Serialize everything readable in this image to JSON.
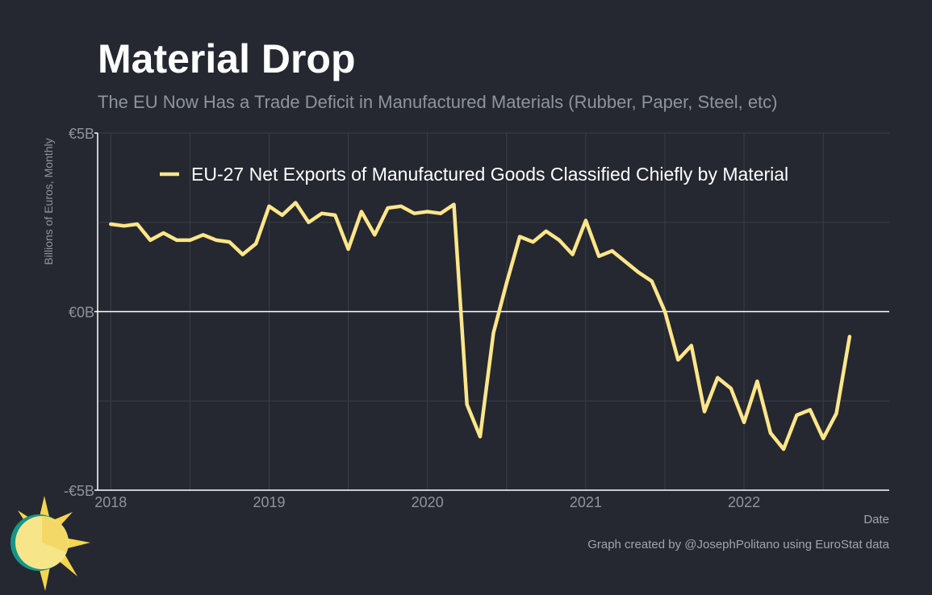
{
  "title": "Material Drop",
  "subtitle": "The EU Now Has a Trade Deficit in Manufactured Materials (Rubber, Paper, Steel, etc)",
  "credit": "Graph created by @JosephPolitano using EuroStat data",
  "colors": {
    "background": "#252830",
    "line": "#fde68a",
    "grid": "#3a3e47",
    "axis": "#ffffff",
    "text_muted": "#8f949c"
  },
  "logo_icon": "sun-icon",
  "chart_data": {
    "type": "line",
    "title": "Material Drop",
    "xlabel": "Date",
    "ylabel": "Billions of Euros, Monthly",
    "ylim": [
      -5,
      5
    ],
    "yticks": [
      {
        "value": 5,
        "label": "€5B"
      },
      {
        "value": 0,
        "label": "€0B"
      },
      {
        "value": -5,
        "label": "-€5B"
      }
    ],
    "xlim": [
      2017.917,
      2022.917
    ],
    "xticks": [
      {
        "value": 2018,
        "label": "2018"
      },
      {
        "value": 2019,
        "label": "2019"
      },
      {
        "value": 2020,
        "label": "2020"
      },
      {
        "value": 2021,
        "label": "2021"
      },
      {
        "value": 2022,
        "label": "2022"
      }
    ],
    "legend": {
      "position": "top-left",
      "label": "EU-27 Net Exports of Manufactured Goods Classified Chiefly by Material"
    },
    "series": [
      {
        "name": "EU-27 Net Exports of Manufactured Goods Classified Chiefly by Material",
        "x": [
          2018.0,
          2018.083,
          2018.167,
          2018.25,
          2018.333,
          2018.417,
          2018.5,
          2018.583,
          2018.667,
          2018.75,
          2018.833,
          2018.917,
          2019.0,
          2019.083,
          2019.167,
          2019.25,
          2019.333,
          2019.417,
          2019.5,
          2019.583,
          2019.667,
          2019.75,
          2019.833,
          2019.917,
          2020.0,
          2020.083,
          2020.167,
          2020.25,
          2020.333,
          2020.417,
          2020.5,
          2020.583,
          2020.667,
          2020.75,
          2020.833,
          2020.917,
          2021.0,
          2021.083,
          2021.167,
          2021.25,
          2021.333,
          2021.417,
          2021.5,
          2021.583,
          2021.667,
          2021.75,
          2021.833,
          2021.917,
          2022.0,
          2022.083,
          2022.167,
          2022.25,
          2022.333,
          2022.417,
          2022.5,
          2022.583,
          2022.667
        ],
        "values": [
          2.45,
          2.4,
          2.45,
          2.0,
          2.2,
          2.0,
          2.0,
          2.15,
          2.0,
          1.95,
          1.6,
          1.9,
          2.95,
          2.7,
          3.05,
          2.5,
          2.75,
          2.7,
          1.75,
          2.8,
          2.15,
          2.9,
          2.95,
          2.75,
          2.8,
          2.75,
          3.0,
          -2.6,
          -3.5,
          -0.6,
          0.8,
          2.1,
          1.95,
          2.25,
          2.0,
          1.6,
          2.55,
          1.55,
          1.7,
          1.4,
          1.1,
          0.85,
          0.0,
          -1.35,
          -0.95,
          -2.8,
          -1.85,
          -2.15,
          -3.1,
          -1.95,
          -3.4,
          -3.85,
          -2.9,
          -2.75,
          -3.55,
          -2.85,
          -0.7
        ]
      }
    ]
  }
}
